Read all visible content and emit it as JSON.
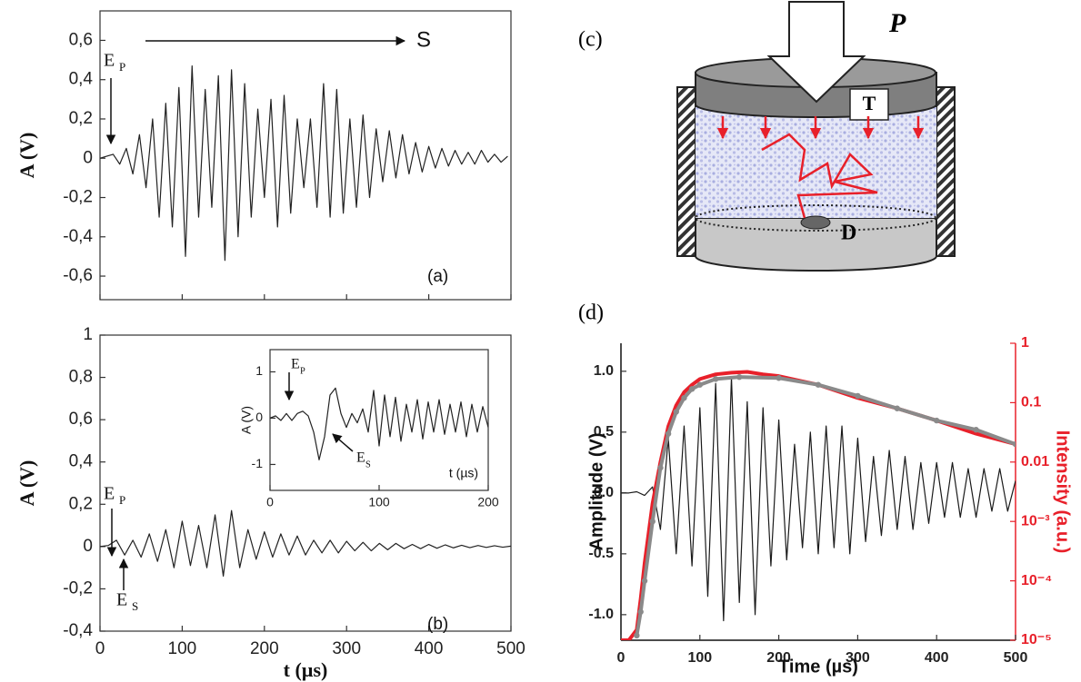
{
  "chart_data": [
    {
      "type": "line",
      "panel_label": "(a)",
      "ylabel": "A (V)",
      "xlim": [
        0,
        500
      ],
      "xticks": [
        0,
        100,
        200,
        300,
        400,
        500
      ],
      "ylim": [
        -0.72,
        0.75
      ],
      "yticks": [
        {
          "value": -0.6,
          "label": "-0,6"
        },
        {
          "value": -0.4,
          "label": "-0,4"
        },
        {
          "value": -0.2,
          "label": "-0,2"
        },
        0,
        {
          "value": 0.2,
          "label": "0,2"
        },
        {
          "value": 0.4,
          "label": "0,4"
        },
        {
          "value": 0.6,
          "label": "0,6"
        }
      ],
      "annotations": [
        {
          "text": "S"
        },
        {
          "text": "E",
          "sub": "P"
        }
      ],
      "series": [
        {
          "color": "#222222",
          "x": [
            0,
            8,
            16,
            24,
            32,
            40,
            48,
            56,
            64,
            72,
            80,
            88,
            96,
            104,
            112,
            120,
            128,
            136,
            144,
            152,
            160,
            168,
            176,
            184,
            192,
            200,
            208,
            216,
            224,
            232,
            240,
            248,
            256,
            264,
            272,
            280,
            288,
            296,
            304,
            312,
            320,
            328,
            336,
            344,
            352,
            360,
            368,
            376,
            384,
            392,
            400,
            408,
            416,
            424,
            432,
            440,
            448,
            456,
            464,
            472,
            480,
            488,
            496
          ],
          "values": [
            0,
            0.01,
            0.02,
            -0.03,
            0.05,
            -0.08,
            0.12,
            -0.15,
            0.2,
            -0.3,
            0.28,
            -0.35,
            0.36,
            -0.5,
            0.47,
            -0.3,
            0.35,
            -0.25,
            0.42,
            -0.52,
            0.45,
            -0.4,
            0.38,
            -0.3,
            0.25,
            -0.2,
            0.3,
            -0.35,
            0.32,
            -0.28,
            0.2,
            -0.15,
            0.2,
            -0.25,
            0.38,
            -0.3,
            0.35,
            -0.28,
            0.2,
            -0.25,
            0.22,
            -0.2,
            0.15,
            -0.12,
            0.14,
            -0.1,
            0.12,
            -0.08,
            0.08,
            -0.07,
            0.06,
            -0.05,
            0.05,
            -0.04,
            0.04,
            -0.03,
            0.03,
            -0.03,
            0.04,
            -0.02,
            0.02,
            -0.02,
            0.01
          ]
        }
      ]
    },
    {
      "type": "line",
      "panel_label": "(b)",
      "ylabel": "A (V)",
      "xlabel": "t (µs)",
      "xlim": [
        0,
        500
      ],
      "xticks": [
        0,
        100,
        200,
        300,
        400,
        500
      ],
      "ylim": [
        -0.4,
        1
      ],
      "yticks": [
        {
          "value": -0.4,
          "label": "-0,4"
        },
        {
          "value": -0.2,
          "label": "-0,2"
        },
        0,
        {
          "value": 0.2,
          "label": "0,2"
        },
        {
          "value": 0.4,
          "label": "0,4"
        },
        {
          "value": 0.6,
          "label": "0,6"
        },
        {
          "value": 0.8,
          "label": "0,8"
        },
        1
      ],
      "annotations": [
        {
          "text": "E",
          "sub": "P"
        },
        {
          "text": "E",
          "sub": "S"
        }
      ],
      "series": [
        {
          "color": "#222222",
          "x": [
            0,
            10,
            20,
            30,
            40,
            50,
            60,
            70,
            80,
            90,
            100,
            110,
            120,
            130,
            140,
            150,
            160,
            170,
            180,
            190,
            200,
            210,
            220,
            230,
            240,
            250,
            260,
            270,
            280,
            290,
            300,
            310,
            320,
            330,
            340,
            350,
            360,
            370,
            380,
            390,
            400,
            410,
            420,
            430,
            440,
            450,
            460,
            470,
            480,
            490,
            500
          ],
          "values": [
            0,
            0.005,
            0.03,
            -0.04,
            0.03,
            -0.05,
            0.06,
            -0.07,
            0.08,
            -0.1,
            0.12,
            -0.09,
            0.1,
            -0.1,
            0.15,
            -0.14,
            0.17,
            -0.1,
            0.08,
            -0.06,
            0.07,
            -0.05,
            0.06,
            -0.04,
            0.05,
            -0.04,
            0.03,
            -0.03,
            0.03,
            -0.03,
            0.025,
            -0.02,
            0.02,
            -0.02,
            0.015,
            -0.015,
            0.015,
            -0.01,
            0.01,
            -0.01,
            0.01,
            -0.008,
            0.008,
            -0.006,
            0.006,
            -0.005,
            0.005,
            -0.004,
            0.004,
            -0.003,
            0.002
          ]
        }
      ]
    },
    {
      "type": "line",
      "ylabel": "A (V)",
      "xlabel": "t (µs)",
      "xlim": [
        0,
        200
      ],
      "xticks": [
        0,
        100,
        200
      ],
      "ylim": [
        -1.56,
        1.48
      ],
      "yticks": [
        -1,
        0,
        1
      ],
      "annotations": [
        {
          "text": "E",
          "sub": "P"
        },
        {
          "text": "E",
          "sub": "S"
        }
      ],
      "series": [
        {
          "color": "#222222",
          "x": [
            0,
            5,
            10,
            15,
            20,
            25,
            30,
            35,
            40,
            45,
            50,
            55,
            60,
            65,
            70,
            75,
            80,
            85,
            90,
            95,
            100,
            105,
            110,
            115,
            120,
            125,
            130,
            135,
            140,
            145,
            150,
            155,
            160,
            165,
            170,
            175,
            180,
            185,
            190,
            195,
            200
          ],
          "values": [
            0,
            0.05,
            -0.05,
            0.1,
            -0.05,
            0.1,
            0.15,
            0.05,
            -0.3,
            -0.9,
            -0.4,
            0.5,
            0.65,
            0.1,
            -0.2,
            0.1,
            -0.1,
            0.2,
            -0.3,
            0.6,
            -0.6,
            0.5,
            -0.4,
            0.45,
            -0.5,
            0.3,
            -0.3,
            0.4,
            -0.45,
            0.35,
            -0.3,
            0.4,
            -0.35,
            0.3,
            -0.3,
            0.35,
            -0.4,
            0.3,
            -0.3,
            0.25,
            -0.2
          ]
        }
      ]
    },
    {
      "type": "line",
      "ylabel": "Amplitude (V)",
      "y2label": "Intensity (a.u.)",
      "xlabel": "Time (µs)",
      "xlim": [
        0,
        500
      ],
      "xticks": [
        0,
        100,
        200,
        300,
        400,
        500
      ],
      "ylim": [
        -1.21,
        1.23
      ],
      "yticks": [
        {
          "value": -1,
          "label": "-1.0"
        },
        {
          "value": -0.5,
          "label": "-0.5"
        },
        {
          "value": 0,
          "label": "0.0"
        },
        0.5,
        {
          "value": 1,
          "label": "1.0"
        }
      ],
      "y2scale": "log",
      "y2lim": [
        1e-05,
        1
      ],
      "y2ticks": [
        {
          "value": 1e-05,
          "label": "10⁻⁵"
        },
        {
          "value": 0.0001,
          "label": "10⁻⁴"
        },
        {
          "value": 0.001,
          "label": "10⁻³"
        },
        0.01,
        0.1,
        1
      ],
      "y2color": "#e8202a",
      "series": [
        {
          "color": "#1a1a1a",
          "x": [
            0,
            10,
            20,
            30,
            40,
            50,
            60,
            70,
            80,
            90,
            100,
            110,
            120,
            130,
            140,
            150,
            160,
            170,
            180,
            190,
            200,
            210,
            220,
            230,
            240,
            250,
            260,
            270,
            280,
            290,
            300,
            310,
            320,
            330,
            340,
            350,
            360,
            370,
            380,
            390,
            400,
            410,
            420,
            430,
            440,
            450,
            460,
            470,
            480,
            490,
            500
          ],
          "values": [
            0,
            0,
            0.01,
            -0.02,
            0.05,
            -0.3,
            0.45,
            -0.5,
            0.55,
            -0.6,
            0.7,
            -0.85,
            0.9,
            -1.05,
            0.95,
            -0.9,
            0.75,
            -1.0,
            0.7,
            -0.6,
            0.6,
            -0.55,
            0.4,
            -0.45,
            0.5,
            -0.5,
            0.55,
            -0.45,
            0.55,
            -0.5,
            0.45,
            -0.4,
            0.3,
            -0.35,
            0.35,
            -0.3,
            0.3,
            -0.3,
            0.25,
            -0.25,
            0.25,
            -0.2,
            0.25,
            -0.2,
            0.2,
            -0.2,
            0.2,
            -0.15,
            0.2,
            -0.15,
            0.1
          ]
        },
        {
          "color": "#e8202a",
          "axis": "y2",
          "x": [
            0,
            10,
            20,
            25,
            30,
            40,
            50,
            60,
            70,
            80,
            90,
            100,
            120,
            140,
            160,
            180,
            200,
            250,
            300,
            350,
            400,
            450,
            500
          ],
          "values": [
            1e-05,
            1e-05,
            1.5e-05,
            5e-05,
            0.0002,
            0.002,
            0.01,
            0.04,
            0.09,
            0.15,
            0.2,
            0.25,
            0.3,
            0.32,
            0.33,
            0.3,
            0.28,
            0.2,
            0.12,
            0.08,
            0.05,
            0.03,
            0.02
          ]
        },
        {
          "color": "#8a8a8a",
          "axis": "y2",
          "marker": "circle",
          "x": [
            20,
            25,
            30,
            40,
            50,
            60,
            70,
            80,
            90,
            100,
            120,
            150,
            200,
            250,
            300,
            350,
            400,
            450,
            500
          ],
          "values": [
            1.2e-05,
            3e-05,
            0.0001,
            0.001,
            0.008,
            0.03,
            0.07,
            0.12,
            0.17,
            0.2,
            0.25,
            0.27,
            0.26,
            0.2,
            0.13,
            0.08,
            0.05,
            0.035,
            0.02
          ]
        }
      ]
    }
  ],
  "diagram": {
    "panel_label": "(c)",
    "load": "P",
    "transducer": "T",
    "detector": "D"
  },
  "panel_d_label": "(d)"
}
